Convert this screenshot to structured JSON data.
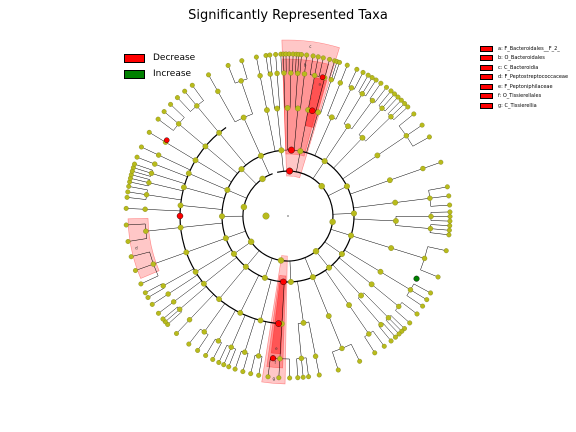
{
  "title": "Significantly Represented Taxa",
  "legend": [
    {
      "label": "Decrease",
      "color": "#ff0000"
    },
    {
      "label": "Increase",
      "color": "#008000"
    }
  ],
  "taxa_legend": [
    {
      "label": "a: F_Bacteroidales__F_2_",
      "color": "#ff0000"
    },
    {
      "label": "b: O_Bacteroidales",
      "color": "#ff0000"
    },
    {
      "label": "c: C_Bacteroidia",
      "color": "#ff0000"
    },
    {
      "label": "d: F_Peptostreptococcaceae",
      "color": "#ff0000"
    },
    {
      "label": "e: F_Peptoniphilaceae",
      "color": "#ff0000"
    },
    {
      "label": "f: O_Tissierellales",
      "color": "#ff0000"
    },
    {
      "label": "g: C_Tissierellia",
      "color": "#ff0000"
    }
  ],
  "colors": {
    "node": "#b8bb1c",
    "decrease": "#ff0000",
    "increase": "#008000",
    "branch": "#000000"
  },
  "clade_labels": [
    "c",
    "b",
    "a",
    "d",
    "e",
    "f",
    "g"
  ]
}
